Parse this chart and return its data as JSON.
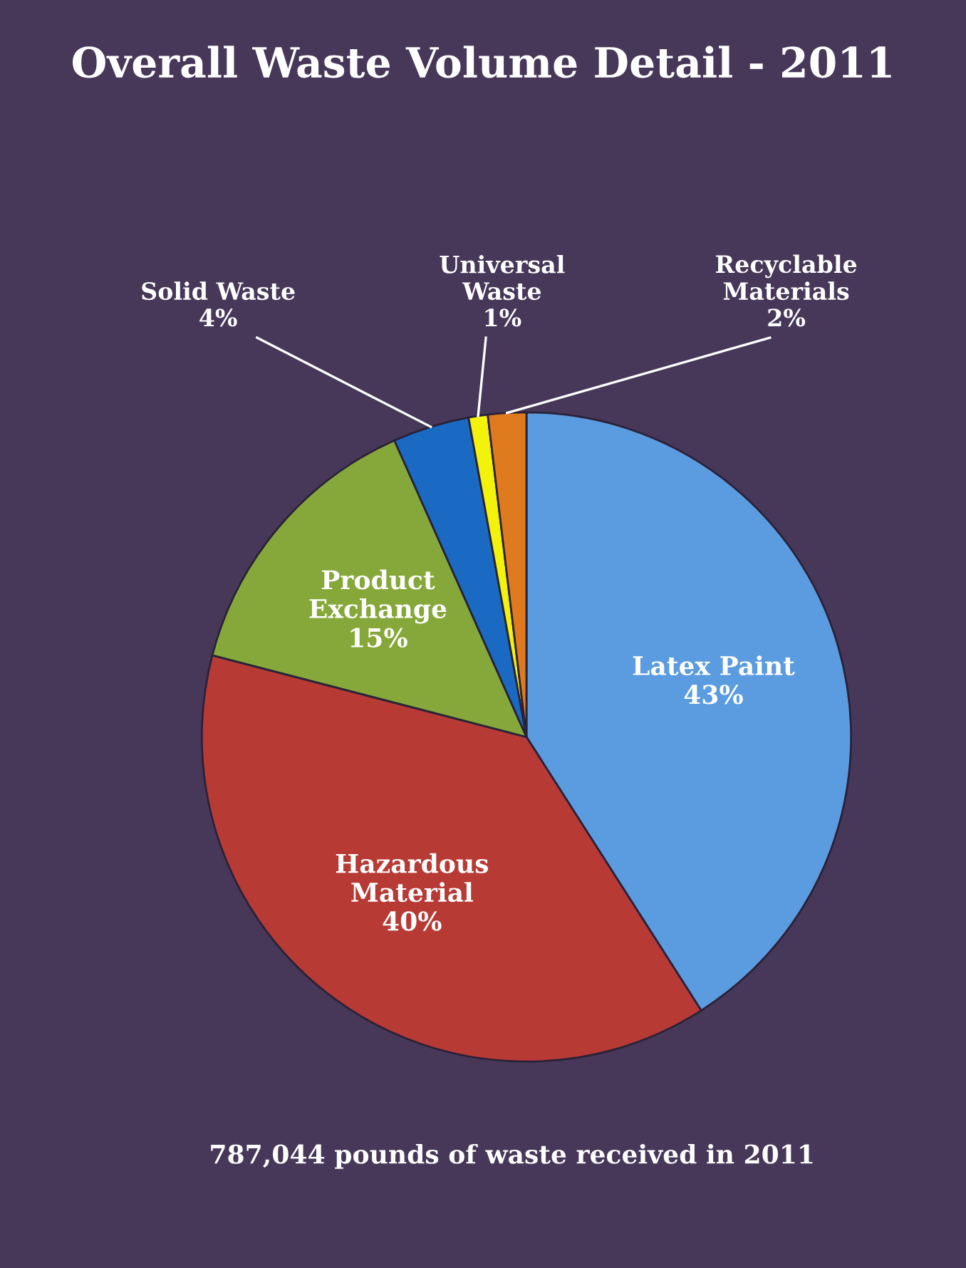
{
  "chart_data": {
    "type": "pie",
    "title": "Overall Waste Volume Detail - 2011",
    "categories": [
      "Latex Paint",
      "Hazardous\nMaterial",
      "Product\nExchange",
      "Solid Waste",
      "Universal\nWaste",
      "Recyclable\nMaterials"
    ],
    "values": [
      43,
      40,
      15,
      4,
      1,
      2
    ],
    "colors": [
      "#5b9be0",
      "#b83a35",
      "#86a83a",
      "#1a6ac4",
      "#f2f20a",
      "#e07a1e"
    ],
    "value_labels": [
      "43%",
      "40%",
      "15%",
      "4%",
      "1%",
      "2%"
    ],
    "annotations": [
      "787,044 pounds of waste received in 2011"
    ]
  }
}
